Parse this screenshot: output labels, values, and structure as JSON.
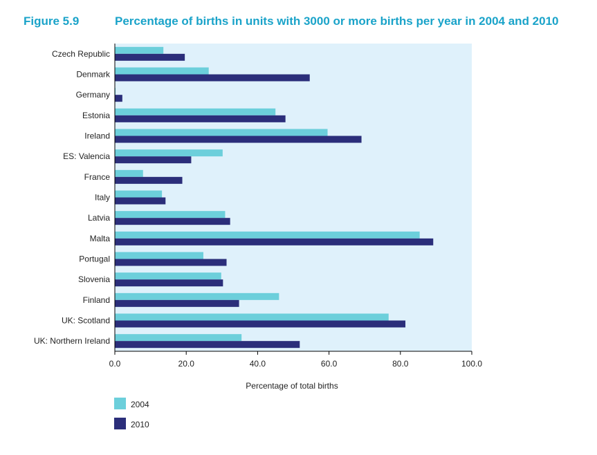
{
  "figure": {
    "label": "Figure 5.9",
    "title": "Percentage of births in units with 3000 or more births per year in 2004 and 2010"
  },
  "chart_data": {
    "type": "bar",
    "orientation": "horizontal",
    "title": "Percentage of births in units with 3000 or more births per year in 2004 and 2010",
    "xlabel": "Percentage of total births",
    "ylabel": "",
    "xlim": [
      0,
      100
    ],
    "x_ticks": [
      "0.0",
      "20.0",
      "40.0",
      "60.0",
      "80.0",
      "100.0"
    ],
    "grid": false,
    "legend": "bottom-left",
    "categories": [
      "Czech Republic",
      "Denmark",
      "Germany",
      "Estonia",
      "Ireland",
      "ES: Valencia",
      "France",
      "Italy",
      "Latvia",
      "Malta",
      "Portugal",
      "Slovenia",
      "Finland",
      "UK: Scotland",
      "UK: Northern Ireland"
    ],
    "series": [
      {
        "name": "2004",
        "color": "#6ccfdb",
        "values": [
          13.6,
          26.3,
          0.2,
          45.0,
          59.6,
          30.2,
          7.9,
          13.2,
          30.9,
          85.4,
          24.8,
          29.8,
          46.0,
          76.7,
          35.5
        ]
      },
      {
        "name": "2010",
        "color": "#2b2e7a",
        "values": [
          19.6,
          54.6,
          2.1,
          47.8,
          69.1,
          21.4,
          18.9,
          14.2,
          32.3,
          89.2,
          31.3,
          30.3,
          34.8,
          81.4,
          51.8
        ]
      }
    ],
    "plot_background": "#dff1fb"
  }
}
